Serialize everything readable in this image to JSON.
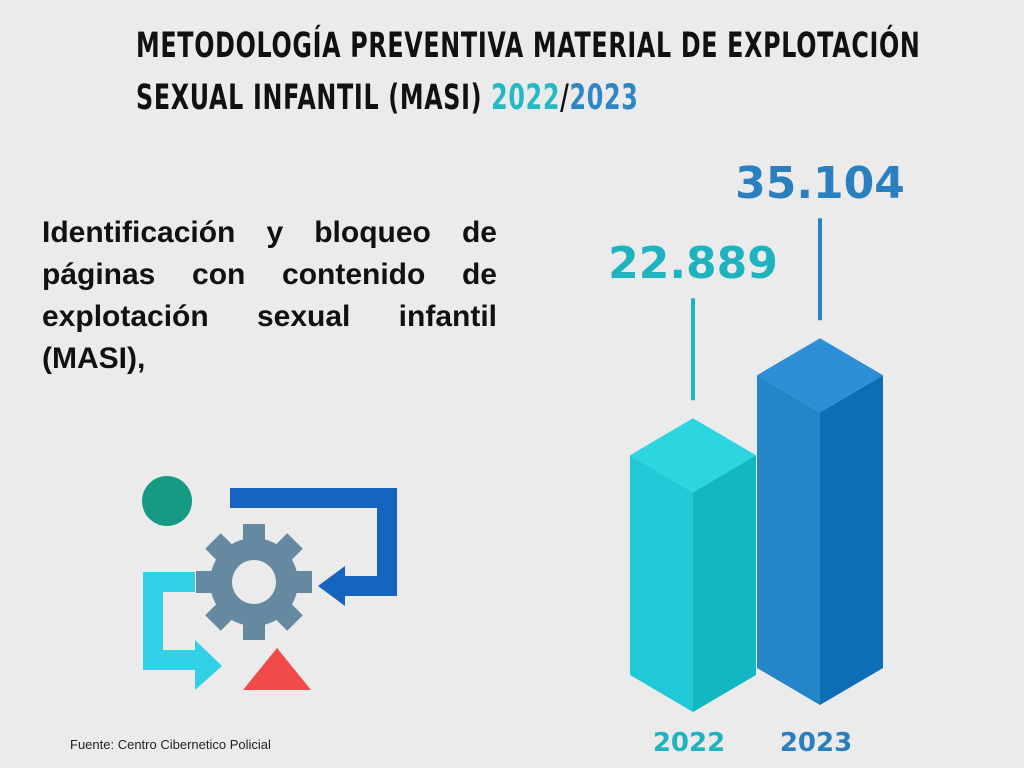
{
  "title": {
    "line1": "METODOLOGÍA PREVENTIVA MATERIAL DE EXPLOTACIÓN",
    "line2_prefix": "SEXUAL INFANTIL (MASI)",
    "year_a": "2022",
    "separator": "/",
    "year_b": "2023"
  },
  "description": "Identificación y bloqueo de páginas con contenido de explotación sexual infantil (MASI),",
  "source": "Fuente: Centro Cibernetico Policial",
  "colors": {
    "c2022": "#20c9d4",
    "c2023": "#1f7fc5"
  },
  "chart_data": {
    "type": "bar",
    "title": "Identificación y bloqueo de páginas con contenido de explotación sexual infantil (MASI)",
    "categories": [
      "2022",
      "2023"
    ],
    "values": [
      22889,
      35104
    ],
    "value_labels": [
      "22.889",
      "35.104"
    ],
    "xlabel": "",
    "ylabel": ""
  }
}
